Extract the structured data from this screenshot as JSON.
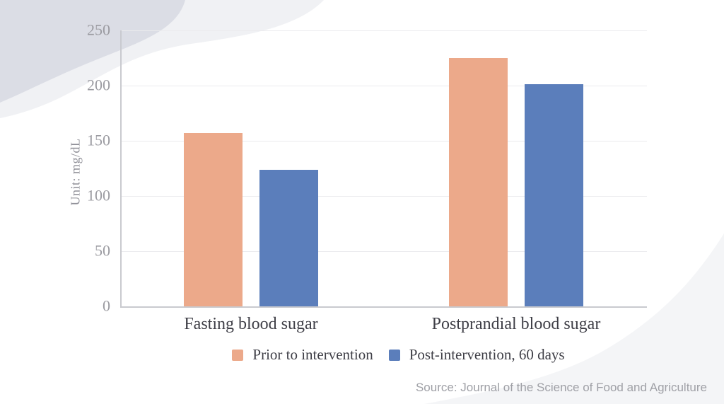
{
  "chart_data": {
    "type": "bar",
    "categories": [
      "Fasting blood sugar",
      "Postprandial blood sugar"
    ],
    "series": [
      {
        "name": "Prior to intervention",
        "color": "#ECA98A",
        "values": [
          157,
          225
        ]
      },
      {
        "name": "Post-intervention, 60 days",
        "color": "#5B7EBB",
        "values": [
          124,
          201
        ]
      }
    ],
    "ylabel": "Unit: mg/dL",
    "ylim": [
      0,
      250
    ],
    "yticks": [
      0,
      50,
      100,
      150,
      200,
      250
    ],
    "grid": true,
    "legend_position": "bottom"
  },
  "source_text": "Source: Journal of the Science of Food and Agriculture",
  "colors": {
    "bar_prior": "#ECA98A",
    "bar_post": "#5B7EBB",
    "axis_line": "#C9CACF",
    "gridline": "#EBEBEE",
    "tick_label": "#9B9BA1",
    "category_label": "#3E3E46",
    "source_text": "#9FA0A6",
    "decor_dark": "#DBDDE5",
    "decor_light": "#F0F1F4",
    "decor_bottom": "#F4F5F7"
  }
}
